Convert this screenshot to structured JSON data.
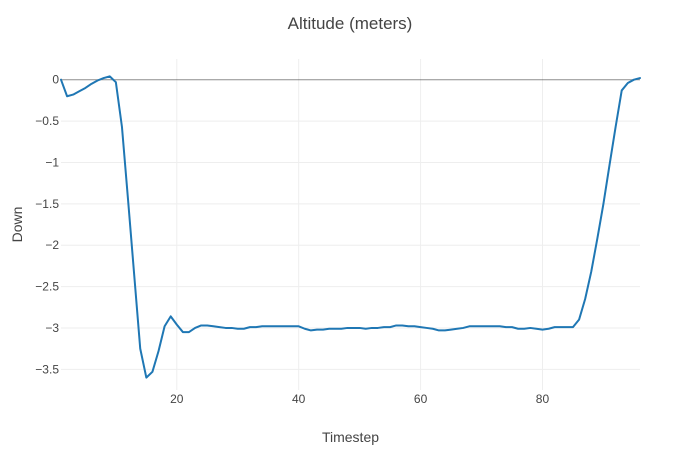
{
  "chart_data": {
    "type": "line",
    "title": "Altitude (meters)",
    "xlabel": "Timestep",
    "ylabel": "Down",
    "xlim": [
      1,
      96
    ],
    "ylim": [
      -3.75,
      0.25
    ],
    "x_ticks": [
      20,
      40,
      60,
      80
    ],
    "y_ticks": [
      0,
      -0.5,
      -1,
      -1.5,
      -2,
      -2.5,
      -3,
      -3.5
    ],
    "x_tick_labels": [
      "20",
      "40",
      "60",
      "80"
    ],
    "y_tick_labels": [
      "0",
      "−0.5",
      "−1",
      "−1.5",
      "−2",
      "−2.5",
      "−3",
      "−3.5"
    ],
    "grid": true,
    "zero_line": true,
    "colors": {
      "series": "#1f77b4"
    },
    "series": [
      {
        "color": "#1f77b4",
        "x": [
          1,
          2,
          3,
          4,
          5,
          6,
          7,
          8,
          9,
          10,
          11,
          12,
          13,
          14,
          15,
          16,
          17,
          18,
          19,
          20,
          21,
          22,
          23,
          24,
          25,
          26,
          27,
          28,
          29,
          30,
          31,
          32,
          33,
          34,
          35,
          36,
          37,
          38,
          39,
          40,
          41,
          42,
          43,
          44,
          45,
          46,
          47,
          48,
          49,
          50,
          51,
          52,
          53,
          54,
          55,
          56,
          57,
          58,
          59,
          60,
          61,
          62,
          63,
          64,
          65,
          66,
          67,
          68,
          69,
          70,
          71,
          72,
          73,
          74,
          75,
          76,
          77,
          78,
          79,
          80,
          81,
          82,
          83,
          84,
          85,
          86,
          87,
          88,
          89,
          90,
          91,
          92,
          93,
          94,
          95,
          96
        ],
        "y": [
          0,
          -0.2,
          -0.18,
          -0.14,
          -0.1,
          -0.05,
          -0.01,
          0.02,
          0.04,
          -0.03,
          -0.57,
          -1.45,
          -2.35,
          -3.25,
          -3.6,
          -3.53,
          -3.28,
          -2.98,
          -2.86,
          -2.96,
          -3.05,
          -3.05,
          -3.0,
          -2.97,
          -2.97,
          -2.98,
          -2.99,
          -3.0,
          -3.0,
          -3.01,
          -3.01,
          -2.99,
          -2.99,
          -2.98,
          -2.98,
          -2.98,
          -2.98,
          -2.98,
          -2.98,
          -2.98,
          -3.01,
          -3.03,
          -3.02,
          -3.02,
          -3.01,
          -3.01,
          -3.01,
          -3.0,
          -3.0,
          -3.0,
          -3.01,
          -3.0,
          -3.0,
          -2.99,
          -2.99,
          -2.97,
          -2.97,
          -2.98,
          -2.98,
          -2.99,
          -3.0,
          -3.01,
          -3.03,
          -3.03,
          -3.02,
          -3.01,
          -3.0,
          -2.98,
          -2.98,
          -2.98,
          -2.98,
          -2.98,
          -2.98,
          -2.99,
          -2.99,
          -3.01,
          -3.01,
          -3.0,
          -3.01,
          -3.02,
          -3.01,
          -2.99,
          -2.99,
          -2.99,
          -2.99,
          -2.9,
          -2.65,
          -2.32,
          -1.92,
          -1.5,
          -1.03,
          -0.57,
          -0.13,
          -0.04,
          0.0,
          0.02
        ]
      }
    ]
  }
}
